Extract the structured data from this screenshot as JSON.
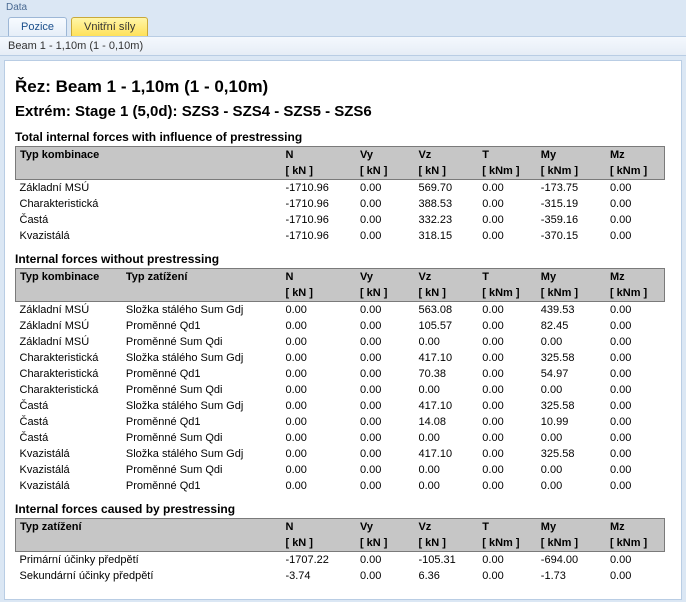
{
  "ribbon": {
    "title": "Data"
  },
  "tabs": {
    "pozice": "Pozice",
    "vnitrni_sily": "Vnitřní síly"
  },
  "subbar": {
    "beam_label": "Beam 1 - 1,10m (1 - 0,10m)"
  },
  "headings": {
    "rez": "Řez: Beam 1 - 1,10m (1 - 0,10m)",
    "extrem": "Extrém: Stage 1 (5,0d): SZS3 - SZS4 - SZS5 - SZS6"
  },
  "columns": {
    "typ_kombinace": "Typ kombinace",
    "typ_zatizeni": "Typ zatížení",
    "N": "N",
    "Vy": "Vy",
    "Vz": "Vz",
    "T": "T",
    "My": "My",
    "Mz": "Mz"
  },
  "units": {
    "kN": "[ kN ]",
    "kNm": "[ kNm ]"
  },
  "sections": {
    "total": {
      "title": "Total internal forces with influence of prestressing",
      "rows": [
        {
          "komb": "Základní MSÚ",
          "N": "-1710.96",
          "Vy": "0.00",
          "Vz": "569.70",
          "T": "0.00",
          "My": "-173.75",
          "Mz": "0.00"
        },
        {
          "komb": "Charakteristická",
          "N": "-1710.96",
          "Vy": "0.00",
          "Vz": "388.53",
          "T": "0.00",
          "My": "-315.19",
          "Mz": "0.00"
        },
        {
          "komb": "Častá",
          "N": "-1710.96",
          "Vy": "0.00",
          "Vz": "332.23",
          "T": "0.00",
          "My": "-359.16",
          "Mz": "0.00"
        },
        {
          "komb": "Kvazistálá",
          "N": "-1710.96",
          "Vy": "0.00",
          "Vz": "318.15",
          "T": "0.00",
          "My": "-370.15",
          "Mz": "0.00"
        }
      ]
    },
    "without": {
      "title": "Internal forces without prestressing",
      "rows": [
        {
          "komb": "Základní MSÚ",
          "zat": "Složka stálého Sum Gdj",
          "N": "0.00",
          "Vy": "0.00",
          "Vz": "563.08",
          "T": "0.00",
          "My": "439.53",
          "Mz": "0.00"
        },
        {
          "komb": "Základní MSÚ",
          "zat": "Proměnné Qd1",
          "N": "0.00",
          "Vy": "0.00",
          "Vz": "105.57",
          "T": "0.00",
          "My": "82.45",
          "Mz": "0.00"
        },
        {
          "komb": "Základní MSÚ",
          "zat": "Proměnné Sum Qdi",
          "N": "0.00",
          "Vy": "0.00",
          "Vz": "0.00",
          "T": "0.00",
          "My": "0.00",
          "Mz": "0.00"
        },
        {
          "komb": "Charakteristická",
          "zat": "Složka stálého Sum Gdj",
          "N": "0.00",
          "Vy": "0.00",
          "Vz": "417.10",
          "T": "0.00",
          "My": "325.58",
          "Mz": "0.00"
        },
        {
          "komb": "Charakteristická",
          "zat": "Proměnné Qd1",
          "N": "0.00",
          "Vy": "0.00",
          "Vz": "70.38",
          "T": "0.00",
          "My": "54.97",
          "Mz": "0.00"
        },
        {
          "komb": "Charakteristická",
          "zat": "Proměnné Sum Qdi",
          "N": "0.00",
          "Vy": "0.00",
          "Vz": "0.00",
          "T": "0.00",
          "My": "0.00",
          "Mz": "0.00"
        },
        {
          "komb": "Častá",
          "zat": "Složka stálého Sum Gdj",
          "N": "0.00",
          "Vy": "0.00",
          "Vz": "417.10",
          "T": "0.00",
          "My": "325.58",
          "Mz": "0.00"
        },
        {
          "komb": "Častá",
          "zat": "Proměnné Qd1",
          "N": "0.00",
          "Vy": "0.00",
          "Vz": "14.08",
          "T": "0.00",
          "My": "10.99",
          "Mz": "0.00"
        },
        {
          "komb": "Častá",
          "zat": "Proměnné Sum Qdi",
          "N": "0.00",
          "Vy": "0.00",
          "Vz": "0.00",
          "T": "0.00",
          "My": "0.00",
          "Mz": "0.00"
        },
        {
          "komb": "Kvazistálá",
          "zat": "Složka stálého Sum Gdj",
          "N": "0.00",
          "Vy": "0.00",
          "Vz": "417.10",
          "T": "0.00",
          "My": "325.58",
          "Mz": "0.00"
        },
        {
          "komb": "Kvazistálá",
          "zat": "Proměnné Sum Qdi",
          "N": "0.00",
          "Vy": "0.00",
          "Vz": "0.00",
          "T": "0.00",
          "My": "0.00",
          "Mz": "0.00"
        },
        {
          "komb": "Kvazistálá",
          "zat": "Proměnné Qd1",
          "N": "0.00",
          "Vy": "0.00",
          "Vz": "0.00",
          "T": "0.00",
          "My": "0.00",
          "Mz": "0.00"
        }
      ]
    },
    "prestress": {
      "title": "Internal forces caused by prestressing",
      "rows": [
        {
          "zat": "Primární účinky předpětí",
          "N": "-1707.22",
          "Vy": "0.00",
          "Vz": "-105.31",
          "T": "0.00",
          "My": "-694.00",
          "Mz": "0.00"
        },
        {
          "zat": "Sekundární účinky předpětí",
          "N": "-3.74",
          "Vy": "0.00",
          "Vz": "6.36",
          "T": "0.00",
          "My": "-1.73",
          "Mz": "0.00"
        }
      ]
    }
  },
  "col_widths": {
    "komb": 100,
    "zat": 150,
    "N": 70,
    "Vy": 55,
    "Vz": 60,
    "T": 55,
    "My": 65,
    "Mz": 55
  }
}
